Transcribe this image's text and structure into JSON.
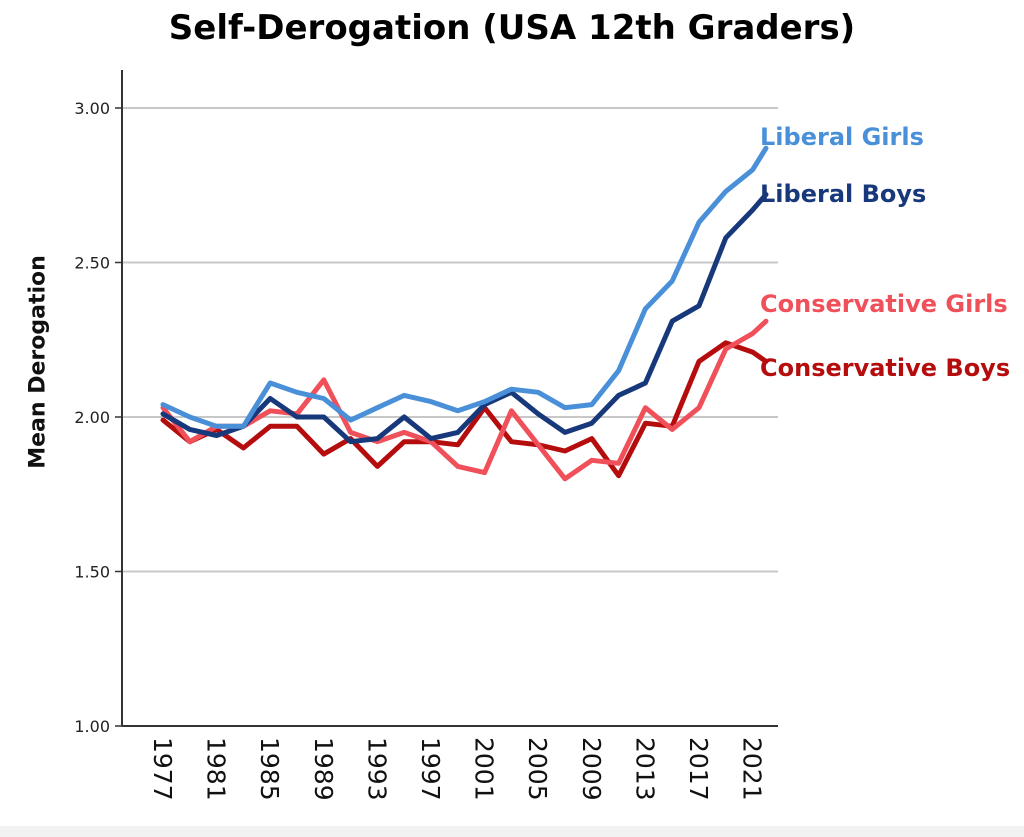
{
  "chart_data": {
    "type": "line",
    "title": "Self-Derogation (USA 12th Graders)",
    "xlabel": "",
    "ylabel": "Mean Derogation",
    "ylim": [
      1.0,
      3.0
    ],
    "yticks": [
      "1.00",
      "1.50",
      "2.00",
      "2.50",
      "3.00"
    ],
    "xlim": [
      1977,
      2022
    ],
    "xticks": [
      "1977",
      "1981",
      "1985",
      "1989",
      "1993",
      "1997",
      "2001",
      "2005",
      "2009",
      "2013",
      "2017",
      "2021"
    ],
    "grid": "horizontal",
    "legend": "right-end labels",
    "x": [
      1977,
      1979,
      1981,
      1983,
      1985,
      1987,
      1989,
      1991,
      1993,
      1995,
      1997,
      1999,
      2001,
      2003,
      2005,
      2007,
      2009,
      2011,
      2013,
      2015,
      2017,
      2019,
      2021,
      2022
    ],
    "series": [
      {
        "name": "Liberal Girls",
        "color": "#4a90d9",
        "values": [
          2.04,
          2.0,
          1.97,
          1.97,
          2.11,
          2.08,
          2.06,
          1.99,
          2.03,
          2.07,
          2.05,
          2.02,
          2.05,
          2.09,
          2.08,
          2.03,
          2.04,
          2.15,
          2.35,
          2.44,
          2.63,
          2.73,
          2.8,
          2.87
        ]
      },
      {
        "name": "Liberal Boys",
        "color": "#17387a",
        "values": [
          2.01,
          1.96,
          1.94,
          1.97,
          2.06,
          2.0,
          2.0,
          1.92,
          1.93,
          2.0,
          1.93,
          1.95,
          2.04,
          2.08,
          2.01,
          1.95,
          1.98,
          2.07,
          2.11,
          2.31,
          2.36,
          2.58,
          2.67,
          2.72
        ]
      },
      {
        "name": "Conservative Girls",
        "color": "#f0505a",
        "values": [
          2.03,
          1.92,
          1.97,
          1.97,
          2.02,
          2.01,
          2.12,
          1.95,
          1.92,
          1.95,
          1.92,
          1.84,
          1.82,
          2.02,
          1.91,
          1.8,
          1.86,
          1.85,
          2.03,
          1.96,
          2.03,
          2.22,
          2.27,
          2.31
        ]
      },
      {
        "name": "Conservative Boys",
        "color": "#b50d0d",
        "values": [
          1.99,
          1.92,
          1.96,
          1.9,
          1.97,
          1.97,
          1.88,
          1.93,
          1.84,
          1.92,
          1.92,
          1.91,
          2.03,
          1.92,
          1.91,
          1.89,
          1.93,
          1.81,
          1.98,
          1.97,
          2.18,
          2.24,
          2.21,
          2.18
        ]
      }
    ]
  }
}
